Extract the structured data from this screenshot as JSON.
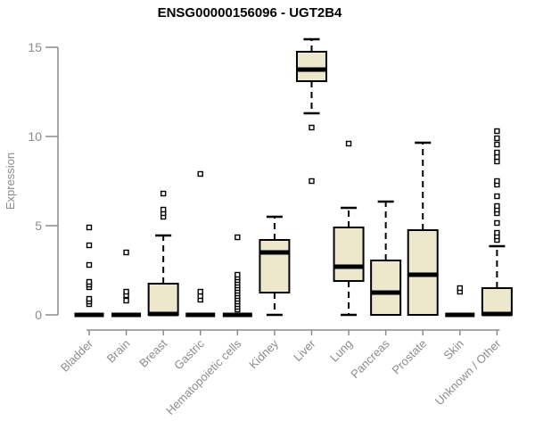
{
  "title": "ENSG00000156096 - UGT2B4",
  "chart_data": {
    "type": "boxplot",
    "title": "ENSG00000156096 - UGT2B4",
    "xlabel": "",
    "ylabel": "Expression",
    "ylim": [
      0,
      15.5
    ],
    "yticks": [
      0,
      5,
      10,
      15
    ],
    "grid": false,
    "legend": "none",
    "colors": {
      "box_fill": "#EDE8CC",
      "box_stroke": "#000000",
      "axis_line": "#8C8C8C",
      "axis_text": "#8C8C8C",
      "title_text": "#000000"
    },
    "categories": [
      "Bladder",
      "Brain",
      "Breast",
      "Gastric",
      "Hematopoietic cells",
      "Kidney",
      "Liver",
      "Lung",
      "Pancreas",
      "Prostate",
      "Skin",
      "Unknown / Other"
    ],
    "boxes": [
      {
        "label": "Bladder",
        "q1": 0,
        "median": 0,
        "q3": 0,
        "whisker_low": 0,
        "whisker_high": 0,
        "outliers": [
          0.6,
          0.75,
          0.9,
          1.55,
          1.7,
          1.85,
          2.8,
          3.9,
          4.9
        ]
      },
      {
        "label": "Brain",
        "q1": 0,
        "median": 0,
        "q3": 0,
        "whisker_low": 0,
        "whisker_high": 0,
        "outliers": [
          0.8,
          1.1,
          1.3,
          3.5
        ]
      },
      {
        "label": "Breast",
        "q1": 0,
        "median": 0.05,
        "q3": 1.75,
        "whisker_low": 0,
        "whisker_high": 4.45,
        "outliers": [
          5.5,
          5.7,
          5.9,
          6.8
        ]
      },
      {
        "label": "Gastric",
        "q1": 0,
        "median": 0,
        "q3": 0,
        "whisker_low": 0,
        "whisker_high": 0,
        "outliers": [
          0.85,
          1.05,
          1.3,
          7.9
        ]
      },
      {
        "label": "Hematopoietic cells",
        "q1": 0,
        "median": 0,
        "q3": 0,
        "whisker_low": 0,
        "whisker_high": 0,
        "outliers": [
          0.3,
          0.45,
          0.6,
          0.75,
          0.9,
          1.05,
          1.2,
          1.35,
          1.5,
          1.65,
          1.8,
          1.95,
          2.1,
          2.25,
          4.35
        ]
      },
      {
        "label": "Kidney",
        "q1": 1.25,
        "median": 3.5,
        "q3": 4.2,
        "whisker_low": 0,
        "whisker_high": 5.5,
        "outliers": []
      },
      {
        "label": "Liver",
        "q1": 13.1,
        "median": 13.75,
        "q3": 14.75,
        "whisker_low": 11.3,
        "whisker_high": 15.45,
        "outliers": [
          10.5,
          7.5
        ]
      },
      {
        "label": "Lung",
        "q1": 1.9,
        "median": 2.7,
        "q3": 4.9,
        "whisker_low": 0,
        "whisker_high": 6.0,
        "outliers": [
          9.6
        ]
      },
      {
        "label": "Pancreas",
        "q1": 0,
        "median": 1.25,
        "q3": 3.05,
        "whisker_low": 0,
        "whisker_high": 6.35,
        "outliers": []
      },
      {
        "label": "Prostate",
        "q1": 0,
        "median": 2.25,
        "q3": 4.75,
        "whisker_low": 0,
        "whisker_high": 9.65,
        "outliers": []
      },
      {
        "label": "Skin",
        "q1": 0,
        "median": 0,
        "q3": 0,
        "whisker_low": 0,
        "whisker_high": 0,
        "outliers": [
          1.3,
          1.5
        ]
      },
      {
        "label": "Unknown / Other",
        "q1": 0,
        "median": 0.05,
        "q3": 1.5,
        "whisker_low": 0,
        "whisker_high": 3.85,
        "outliers": [
          4.2,
          4.4,
          4.6,
          5.15,
          5.7,
          5.9,
          6.1,
          6.65,
          7.3,
          7.5,
          8.6,
          8.85,
          9.1,
          9.55,
          9.9,
          10.3
        ]
      }
    ]
  }
}
